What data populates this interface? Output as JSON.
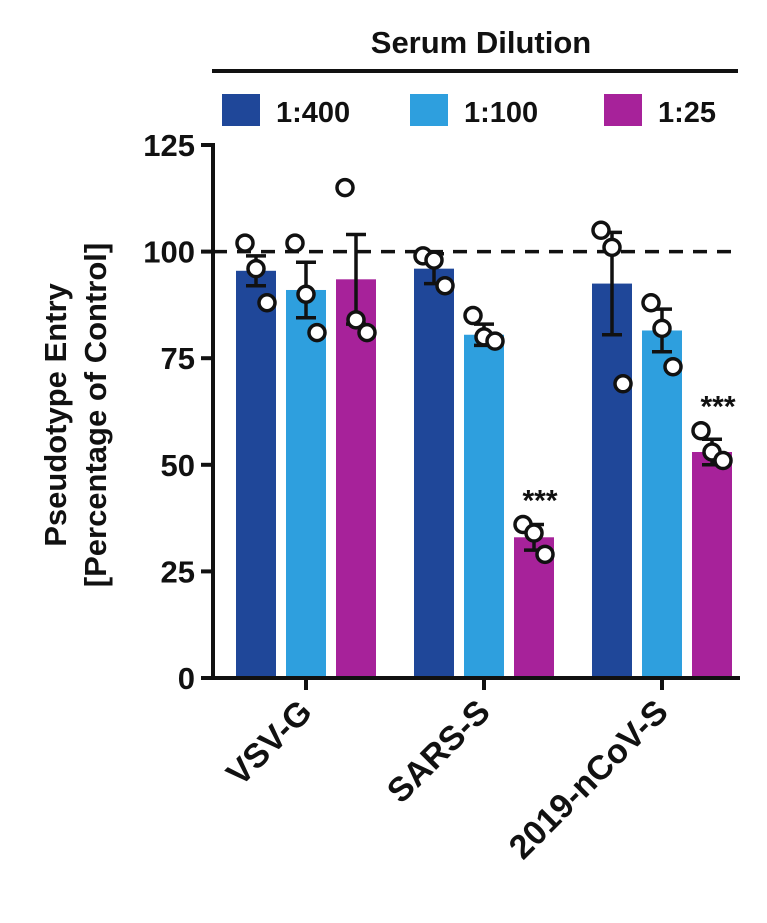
{
  "chart_data": {
    "type": "bar",
    "header_title": "Serum Dilution",
    "ylabel_line1": "Pseudotype Entry",
    "ylabel_line2": "[Percentage of Control]",
    "ylim": [
      0,
      125
    ],
    "yticks": [
      0,
      25,
      50,
      75,
      100,
      125
    ],
    "reference_line": 100,
    "categories": [
      "VSV-G",
      "SARS-S",
      "2019-nCoV-S"
    ],
    "series": [
      {
        "name": "1:400",
        "color": "#1f4799",
        "values": [
          95.5,
          96,
          92.5
        ],
        "errors": [
          3.5,
          3.5,
          12
        ],
        "points": [
          [
            102,
            96,
            88
          ],
          [
            99,
            98,
            92
          ],
          [
            105,
            101,
            69
          ]
        ]
      },
      {
        "name": "1:100",
        "color": "#2e9fde",
        "values": [
          91,
          80.5,
          81.5
        ],
        "errors": [
          6.5,
          2.5,
          5
        ],
        "points": [
          [
            102,
            90,
            81
          ],
          [
            85,
            80,
            79
          ],
          [
            88,
            82,
            73
          ]
        ]
      },
      {
        "name": "1:25",
        "color": "#a7229a",
        "values": [
          93.5,
          33,
          53
        ],
        "errors": [
          10.5,
          3,
          3
        ],
        "points": [
          [
            115,
            84,
            81
          ],
          [
            36,
            34,
            29
          ],
          [
            58,
            53,
            51
          ]
        ]
      }
    ],
    "annotations": [
      {
        "category": "SARS-S",
        "series": "1:25",
        "text": "***"
      },
      {
        "category": "2019-nCoV-S",
        "series": "1:25",
        "text": "***"
      }
    ]
  }
}
